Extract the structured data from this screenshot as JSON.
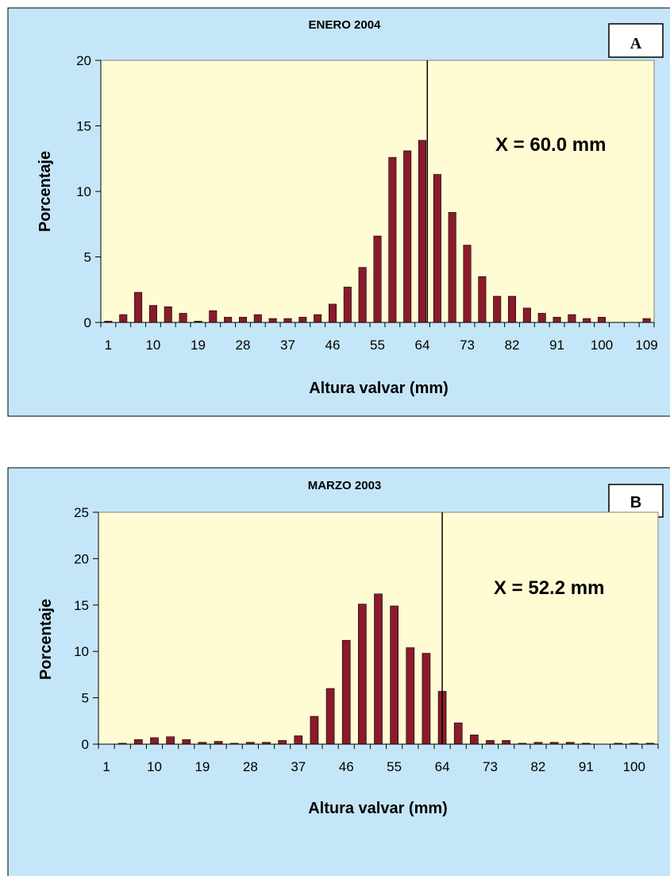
{
  "colors": {
    "outer_bg": "#C5E6F8",
    "plot_bg": "#FFFCD4",
    "bar_fill": "#8B1A2B",
    "plot_border": "#808080"
  },
  "chart_data": [
    {
      "type": "bar",
      "title": "ENERO 2004",
      "panel_label": "A",
      "xlabel": "Altura valvar (mm)",
      "ylabel": "Porcentaje",
      "ylim": [
        0,
        20
      ],
      "yticks": [
        0,
        5,
        10,
        15,
        20
      ],
      "xtick_labels": [
        "1",
        "10",
        "19",
        "28",
        "37",
        "46",
        "55",
        "64",
        "73",
        "82",
        "91",
        "100",
        "109"
      ],
      "categories": [
        1,
        4,
        7,
        10,
        13,
        16,
        19,
        22,
        25,
        28,
        31,
        34,
        37,
        40,
        43,
        46,
        49,
        52,
        55,
        58,
        61,
        64,
        67,
        70,
        73,
        76,
        79,
        82,
        85,
        88,
        91,
        94,
        97,
        100,
        103,
        106,
        109
      ],
      "values": [
        0.1,
        0.6,
        2.3,
        1.3,
        1.2,
        0.7,
        0.1,
        0.9,
        0.4,
        0.4,
        0.6,
        0.3,
        0.3,
        0.4,
        0.6,
        1.4,
        2.7,
        4.2,
        6.6,
        12.6,
        13.1,
        13.9,
        11.3,
        8.4,
        5.9,
        3.5,
        2.0,
        2.0,
        1.1,
        0.7,
        0.4,
        0.6,
        0.3,
        0.4,
        0.0,
        0.0,
        0.3
      ],
      "reference_line_x": 65,
      "annotation": "X = 60.0 mm",
      "grid": false,
      "legend": "none"
    },
    {
      "type": "bar",
      "title": "MARZO 2003",
      "panel_label": "B",
      "xlabel": "Altura valvar (mm)",
      "ylabel": "Porcentaje",
      "ylim": [
        0,
        25
      ],
      "yticks": [
        0,
        5,
        10,
        15,
        20,
        25
      ],
      "xtick_labels": [
        "1",
        "10",
        "19",
        "28",
        "37",
        "46",
        "55",
        "64",
        "73",
        "82",
        "91",
        "100"
      ],
      "categories": [
        1,
        4,
        7,
        10,
        13,
        16,
        19,
        22,
        25,
        28,
        31,
        34,
        37,
        40,
        43,
        46,
        49,
        52,
        55,
        58,
        61,
        64,
        67,
        70,
        73,
        76,
        79,
        82,
        85,
        88,
        91,
        94,
        97,
        100,
        103
      ],
      "values": [
        0.0,
        0.1,
        0.5,
        0.7,
        0.8,
        0.5,
        0.2,
        0.3,
        0.1,
        0.2,
        0.2,
        0.4,
        0.9,
        3.0,
        6.0,
        11.2,
        15.1,
        16.2,
        14.9,
        10.4,
        9.8,
        5.7,
        2.3,
        1.0,
        0.4,
        0.4,
        0.1,
        0.2,
        0.2,
        0.2,
        0.1,
        0.0,
        0.1,
        0.1,
        0.1
      ],
      "reference_line_x": 64,
      "annotation": "X = 52.2 mm",
      "grid": false,
      "legend": "none"
    }
  ]
}
